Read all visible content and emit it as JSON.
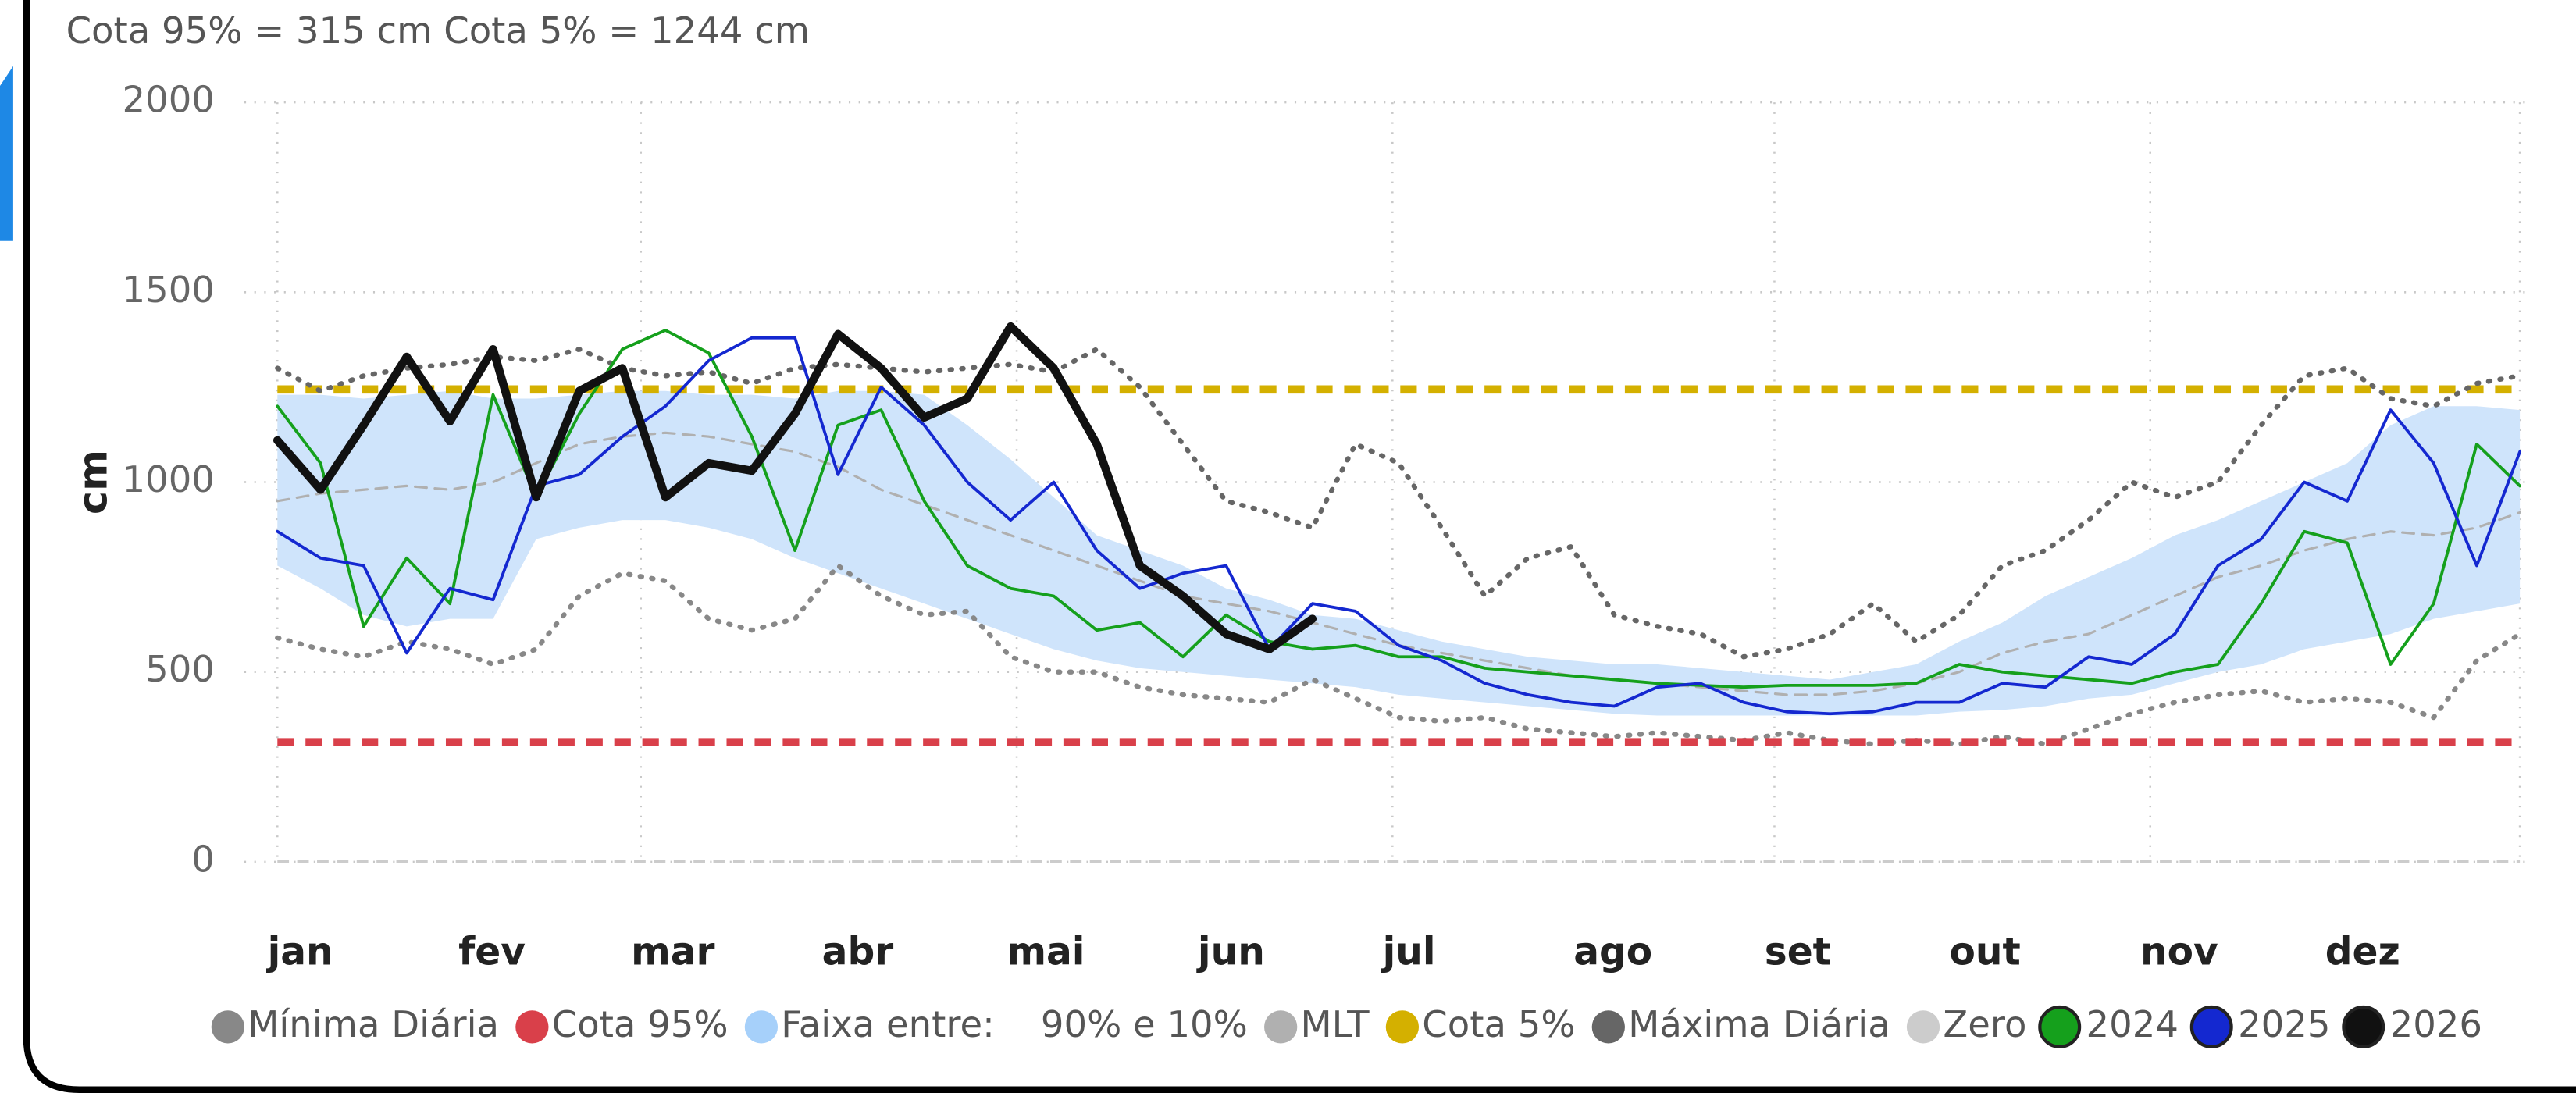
{
  "chart_data": {
    "type": "line",
    "subtitle": "Cota 95% = 315 cm    Cota 5% = 1244 cm",
    "y_label": "cm",
    "x": [
      1,
      8,
      15,
      22,
      29,
      36,
      43,
      50,
      57,
      64,
      71,
      78,
      85,
      92,
      99,
      106,
      113,
      120,
      127,
      134,
      141,
      148,
      155,
      162,
      169,
      176,
      183,
      190,
      197,
      204,
      211,
      218,
      225,
      232,
      239,
      246,
      253,
      260,
      267,
      274,
      281,
      288,
      295,
      302,
      309,
      316,
      323,
      330,
      337,
      344,
      351,
      358,
      365
    ],
    "xlim": [
      1,
      365
    ],
    "xticks": [
      {
        "value": 1,
        "label": "jan"
      },
      {
        "value": 32,
        "label": "fev"
      },
      {
        "value": 60,
        "label": "mar"
      },
      {
        "value": 91,
        "label": "abr"
      },
      {
        "value": 121,
        "label": "mai"
      },
      {
        "value": 152,
        "label": "jun"
      },
      {
        "value": 182,
        "label": "jul"
      },
      {
        "value": 213,
        "label": "ago"
      },
      {
        "value": 244,
        "label": "set"
      },
      {
        "value": 274,
        "label": "out"
      },
      {
        "value": 305,
        "label": "nov"
      },
      {
        "value": 335,
        "label": "dez"
      }
    ],
    "ylim": [
      0,
      2000
    ],
    "yticks": [
      0,
      500,
      1000,
      1500,
      2000
    ],
    "grid": true,
    "legend": "bottom",
    "series": [
      {
        "name": "Mínima Diária",
        "color": "#888888",
        "style": "dotted",
        "width": 3,
        "values": [
          590,
          560,
          540,
          580,
          560,
          520,
          560,
          700,
          760,
          740,
          640,
          610,
          640,
          780,
          700,
          650,
          660,
          540,
          500,
          500,
          460,
          440,
          430,
          420,
          480,
          430,
          380,
          370,
          380,
          350,
          340,
          330,
          340,
          330,
          320,
          340,
          320,
          310,
          320,
          310,
          330,
          310,
          350,
          390,
          420,
          440,
          450,
          420,
          430,
          420,
          380,
          530,
          600
        ]
      },
      {
        "name": "Cota 95%",
        "color": "#d9404a",
        "style": "dashed",
        "width": 5,
        "value": 315
      },
      {
        "name": "Faixa entre:    90% e 10%",
        "color": "#cfe4fb",
        "style": "band",
        "lower": [
          780,
          720,
          650,
          620,
          640,
          640,
          850,
          880,
          900,
          900,
          880,
          850,
          800,
          760,
          720,
          680,
          640,
          600,
          560,
          530,
          510,
          500,
          490,
          480,
          470,
          460,
          440,
          430,
          420,
          410,
          400,
          390,
          385,
          385,
          385,
          385,
          385,
          385,
          385,
          395,
          400,
          410,
          430,
          440,
          470,
          500,
          520,
          560,
          580,
          600,
          640,
          660,
          680
        ],
        "upper": [
          1230,
          1230,
          1220,
          1230,
          1240,
          1220,
          1220,
          1230,
          1240,
          1240,
          1230,
          1230,
          1220,
          1240,
          1240,
          1230,
          1150,
          1060,
          960,
          860,
          820,
          780,
          720,
          690,
          650,
          640,
          610,
          580,
          560,
          540,
          530,
          520,
          520,
          510,
          500,
          490,
          480,
          500,
          520,
          580,
          630,
          700,
          750,
          800,
          860,
          900,
          950,
          1000,
          1050,
          1150,
          1200,
          1200,
          1190
        ]
      },
      {
        "name": "MLT",
        "color": "#b0b0b0",
        "style": "dashed-thin",
        "width": 1.5,
        "values": [
          950,
          970,
          980,
          990,
          980,
          1000,
          1050,
          1100,
          1120,
          1130,
          1120,
          1100,
          1080,
          1040,
          980,
          940,
          900,
          860,
          820,
          780,
          740,
          700,
          680,
          660,
          630,
          600,
          570,
          550,
          530,
          510,
          490,
          480,
          470,
          460,
          450,
          440,
          440,
          450,
          470,
          500,
          550,
          580,
          600,
          650,
          700,
          750,
          780,
          820,
          850,
          870,
          860,
          880,
          920
        ]
      },
      {
        "name": "Cota 5%",
        "color": "#d4b000",
        "style": "dashed",
        "width": 5,
        "value": 1244
      },
      {
        "name": "Máxima Diária",
        "color": "#666666",
        "style": "dotted",
        "width": 3,
        "values": [
          1300,
          1240,
          1280,
          1300,
          1310,
          1330,
          1320,
          1350,
          1300,
          1280,
          1290,
          1260,
          1300,
          1310,
          1300,
          1290,
          1300,
          1310,
          1290,
          1350,
          1250,
          1100,
          950,
          920,
          880,
          1100,
          1050,
          880,
          700,
          800,
          830,
          650,
          620,
          600,
          540,
          560,
          600,
          680,
          580,
          650,
          780,
          820,
          900,
          1000,
          960,
          1000,
          1150,
          1280,
          1300,
          1220,
          1200,
          1260,
          1280
        ]
      },
      {
        "name": "Zero",
        "color": "#cccccc",
        "style": "dashed-thin",
        "width": 2,
        "value": 0
      },
      {
        "name": "2024",
        "color": "#15a01c",
        "style": "solid",
        "width": 1.8,
        "values": [
          1200,
          1050,
          620,
          800,
          680,
          1230,
          960,
          1180,
          1350,
          1400,
          1340,
          1120,
          820,
          1150,
          1190,
          950,
          780,
          720,
          700,
          610,
          630,
          540,
          650,
          580,
          560,
          570,
          540,
          540,
          510,
          500,
          490,
          480,
          470,
          465,
          460,
          465,
          465,
          465,
          470,
          520,
          500,
          490,
          480,
          470,
          500,
          520,
          680,
          870,
          840,
          520,
          680,
          1100,
          990
        ]
      },
      {
        "name": "2025",
        "color": "#1428d0",
        "style": "solid",
        "width": 1.8,
        "values": [
          870,
          800,
          780,
          550,
          720,
          690,
          990,
          1020,
          1120,
          1200,
          1320,
          1380,
          1380,
          1020,
          1250,
          1150,
          1000,
          900,
          1000,
          820,
          720,
          760,
          780,
          560,
          680,
          660,
          570,
          530,
          470,
          440,
          420,
          410,
          460,
          470,
          420,
          395,
          390,
          395,
          420,
          420,
          470,
          460,
          540,
          520,
          600,
          780,
          850,
          1000,
          950,
          1190,
          1050,
          780,
          1080
        ]
      },
      {
        "name": "2026",
        "color": "#111111",
        "style": "solid",
        "width": 5,
        "values": [
          1110,
          980,
          1150,
          1330,
          1160,
          1350,
          960,
          1240,
          1300,
          960,
          1050,
          1030,
          1180,
          1390,
          1300,
          1170,
          1220,
          1410,
          1300,
          1100,
          780,
          700,
          600,
          560,
          640,
          null,
          null,
          null,
          null,
          null,
          null,
          null,
          null,
          null,
          null,
          null,
          null,
          null,
          null,
          null,
          null,
          null,
          null,
          null,
          null,
          null,
          null,
          null,
          null,
          null,
          null,
          null,
          null
        ]
      }
    ]
  }
}
